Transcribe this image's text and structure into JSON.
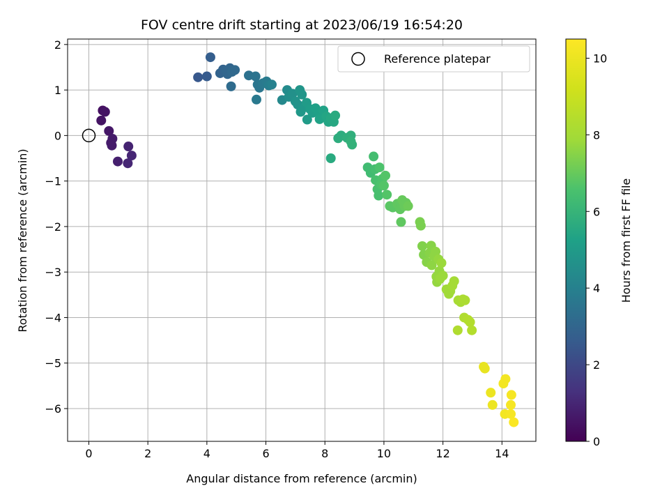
{
  "chart_data": {
    "type": "scatter",
    "title": "FOV centre drift starting at 2023/06/19 16:54:20",
    "xlabel": "Angular distance from reference (arcmin)",
    "ylabel": "Rotation from reference (arcmin)",
    "xlim": [
      -0.72,
      15.15
    ],
    "ylim": [
      -6.72,
      2.12
    ],
    "xticks": [
      0,
      2,
      4,
      6,
      8,
      10,
      12,
      14
    ],
    "yticks": [
      2,
      1,
      0,
      -1,
      -2,
      -3,
      -4,
      -5,
      -6
    ],
    "grid": true,
    "legend": {
      "location": "upper right",
      "entries": [
        "Reference platepar"
      ]
    },
    "reference_point": {
      "x": 0,
      "y": 0,
      "label": "Reference platepar"
    },
    "colorbar": {
      "label": "Hours from first FF file",
      "range": [
        0,
        10.5
      ],
      "ticks": [
        0,
        2,
        4,
        6,
        8,
        10
      ],
      "colormap": "viridis"
    },
    "points": [
      {
        "x": 0.47,
        "y": 0.55,
        "c": 0.4
      },
      {
        "x": 0.55,
        "y": 0.52,
        "c": 0.5
      },
      {
        "x": 0.42,
        "y": 0.33,
        "c": 0.5
      },
      {
        "x": 0.68,
        "y": 0.1,
        "c": 0.6
      },
      {
        "x": 0.8,
        "y": -0.07,
        "c": 0.7
      },
      {
        "x": 0.75,
        "y": -0.16,
        "c": 0.7
      },
      {
        "x": 0.78,
        "y": -0.22,
        "c": 0.7
      },
      {
        "x": 0.98,
        "y": -0.57,
        "c": 0.8
      },
      {
        "x": 1.34,
        "y": -0.24,
        "c": 0.9
      },
      {
        "x": 1.45,
        "y": -0.44,
        "c": 1.0
      },
      {
        "x": 1.32,
        "y": -0.61,
        "c": 1.0
      },
      {
        "x": 3.7,
        "y": 1.28,
        "c": 2.5
      },
      {
        "x": 4.0,
        "y": 1.3,
        "c": 2.6
      },
      {
        "x": 4.12,
        "y": 1.72,
        "c": 2.7
      },
      {
        "x": 4.45,
        "y": 1.37,
        "c": 2.9
      },
      {
        "x": 4.55,
        "y": 1.45,
        "c": 2.9
      },
      {
        "x": 4.65,
        "y": 1.42,
        "c": 3.0
      },
      {
        "x": 4.7,
        "y": 1.35,
        "c": 3.0
      },
      {
        "x": 4.78,
        "y": 1.48,
        "c": 3.0
      },
      {
        "x": 4.85,
        "y": 1.4,
        "c": 3.1
      },
      {
        "x": 4.95,
        "y": 1.44,
        "c": 3.1
      },
      {
        "x": 4.82,
        "y": 1.08,
        "c": 3.2
      },
      {
        "x": 5.42,
        "y": 1.32,
        "c": 3.4
      },
      {
        "x": 5.65,
        "y": 1.3,
        "c": 3.5
      },
      {
        "x": 5.72,
        "y": 1.12,
        "c": 3.6
      },
      {
        "x": 5.78,
        "y": 1.05,
        "c": 3.6
      },
      {
        "x": 5.68,
        "y": 0.79,
        "c": 3.7
      },
      {
        "x": 5.9,
        "y": 1.15,
        "c": 3.7
      },
      {
        "x": 6.02,
        "y": 1.19,
        "c": 3.8
      },
      {
        "x": 6.1,
        "y": 1.1,
        "c": 3.9
      },
      {
        "x": 6.2,
        "y": 1.12,
        "c": 4.0
      },
      {
        "x": 6.55,
        "y": 0.78,
        "c": 4.3
      },
      {
        "x": 6.72,
        "y": 1.0,
        "c": 4.4
      },
      {
        "x": 6.78,
        "y": 0.85,
        "c": 4.5
      },
      {
        "x": 6.9,
        "y": 0.92,
        "c": 4.6
      },
      {
        "x": 7.0,
        "y": 0.75,
        "c": 4.7
      },
      {
        "x": 7.08,
        "y": 0.68,
        "c": 4.7
      },
      {
        "x": 7.15,
        "y": 1.0,
        "c": 4.8
      },
      {
        "x": 7.22,
        "y": 0.9,
        "c": 4.8
      },
      {
        "x": 7.18,
        "y": 0.52,
        "c": 4.9
      },
      {
        "x": 7.3,
        "y": 0.62,
        "c": 4.9
      },
      {
        "x": 7.38,
        "y": 0.72,
        "c": 5.0
      },
      {
        "x": 7.4,
        "y": 0.35,
        "c": 5.0
      },
      {
        "x": 7.5,
        "y": 0.58,
        "c": 5.1
      },
      {
        "x": 7.58,
        "y": 0.5,
        "c": 5.1
      },
      {
        "x": 7.68,
        "y": 0.6,
        "c": 5.2
      },
      {
        "x": 7.78,
        "y": 0.52,
        "c": 5.2
      },
      {
        "x": 7.82,
        "y": 0.36,
        "c": 5.3
      },
      {
        "x": 7.95,
        "y": 0.55,
        "c": 5.3
      },
      {
        "x": 8.05,
        "y": 0.42,
        "c": 5.4
      },
      {
        "x": 8.12,
        "y": 0.3,
        "c": 5.4
      },
      {
        "x": 8.2,
        "y": 0.38,
        "c": 5.5
      },
      {
        "x": 8.3,
        "y": 0.3,
        "c": 5.5
      },
      {
        "x": 8.35,
        "y": 0.44,
        "c": 5.6
      },
      {
        "x": 8.2,
        "y": -0.5,
        "c": 5.6
      },
      {
        "x": 8.45,
        "y": -0.06,
        "c": 5.7
      },
      {
        "x": 8.55,
        "y": 0.0,
        "c": 5.7
      },
      {
        "x": 8.75,
        "y": -0.05,
        "c": 5.8
      },
      {
        "x": 8.88,
        "y": -0.0,
        "c": 5.8
      },
      {
        "x": 8.92,
        "y": -0.2,
        "c": 5.9
      },
      {
        "x": 8.88,
        "y": -0.13,
        "c": 5.9
      },
      {
        "x": 9.45,
        "y": -0.7,
        "c": 6.3
      },
      {
        "x": 9.55,
        "y": -0.82,
        "c": 6.3
      },
      {
        "x": 9.65,
        "y": -0.46,
        "c": 6.4
      },
      {
        "x": 9.7,
        "y": -0.74,
        "c": 6.4
      },
      {
        "x": 9.72,
        "y": -0.98,
        "c": 6.5
      },
      {
        "x": 9.78,
        "y": -1.18,
        "c": 6.5
      },
      {
        "x": 9.82,
        "y": -1.32,
        "c": 6.5
      },
      {
        "x": 9.85,
        "y": -0.7,
        "c": 6.6
      },
      {
        "x": 9.9,
        "y": -1.08,
        "c": 6.6
      },
      {
        "x": 9.95,
        "y": -0.95,
        "c": 6.6
      },
      {
        "x": 10.0,
        "y": -1.1,
        "c": 6.7
      },
      {
        "x": 10.05,
        "y": -0.88,
        "c": 6.7
      },
      {
        "x": 10.1,
        "y": -1.3,
        "c": 6.7
      },
      {
        "x": 10.2,
        "y": -1.55,
        "c": 6.8
      },
      {
        "x": 10.3,
        "y": -1.58,
        "c": 6.8
      },
      {
        "x": 10.45,
        "y": -1.5,
        "c": 6.9
      },
      {
        "x": 10.55,
        "y": -1.62,
        "c": 6.9
      },
      {
        "x": 10.58,
        "y": -1.9,
        "c": 6.9
      },
      {
        "x": 10.62,
        "y": -1.42,
        "c": 7.0
      },
      {
        "x": 10.7,
        "y": -1.55,
        "c": 7.0
      },
      {
        "x": 10.75,
        "y": -1.48,
        "c": 7.0
      },
      {
        "x": 10.82,
        "y": -1.55,
        "c": 7.1
      },
      {
        "x": 11.22,
        "y": -1.9,
        "c": 7.3
      },
      {
        "x": 11.25,
        "y": -1.98,
        "c": 7.3
      },
      {
        "x": 11.3,
        "y": -2.43,
        "c": 7.4
      },
      {
        "x": 11.35,
        "y": -2.62,
        "c": 7.4
      },
      {
        "x": 11.45,
        "y": -2.78,
        "c": 7.5
      },
      {
        "x": 11.55,
        "y": -2.58,
        "c": 7.5
      },
      {
        "x": 11.6,
        "y": -2.42,
        "c": 7.5
      },
      {
        "x": 11.62,
        "y": -2.85,
        "c": 7.6
      },
      {
        "x": 11.7,
        "y": -2.65,
        "c": 7.6
      },
      {
        "x": 11.75,
        "y": -2.55,
        "c": 7.6
      },
      {
        "x": 11.78,
        "y": -3.1,
        "c": 7.7
      },
      {
        "x": 11.8,
        "y": -3.22,
        "c": 7.7
      },
      {
        "x": 11.85,
        "y": -2.72,
        "c": 7.7
      },
      {
        "x": 11.88,
        "y": -2.98,
        "c": 7.7
      },
      {
        "x": 11.9,
        "y": -3.15,
        "c": 7.8
      },
      {
        "x": 11.95,
        "y": -2.8,
        "c": 7.8
      },
      {
        "x": 12.0,
        "y": -3.08,
        "c": 7.8
      },
      {
        "x": 12.12,
        "y": -3.38,
        "c": 7.9
      },
      {
        "x": 12.2,
        "y": -3.48,
        "c": 7.9
      },
      {
        "x": 12.25,
        "y": -3.42,
        "c": 7.9
      },
      {
        "x": 12.32,
        "y": -3.3,
        "c": 8.0
      },
      {
        "x": 12.38,
        "y": -3.2,
        "c": 8.0
      },
      {
        "x": 12.52,
        "y": -3.62,
        "c": 8.1
      },
      {
        "x": 12.6,
        "y": -3.66,
        "c": 8.1
      },
      {
        "x": 12.68,
        "y": -3.6,
        "c": 8.2
      },
      {
        "x": 12.75,
        "y": -3.62,
        "c": 8.2
      },
      {
        "x": 12.5,
        "y": -4.28,
        "c": 8.3
      },
      {
        "x": 12.72,
        "y": -4.0,
        "c": 8.3
      },
      {
        "x": 12.85,
        "y": -4.05,
        "c": 8.4
      },
      {
        "x": 12.92,
        "y": -4.1,
        "c": 8.4
      },
      {
        "x": 12.98,
        "y": -4.28,
        "c": 8.4
      },
      {
        "x": 13.38,
        "y": -5.08,
        "c": 9.9
      },
      {
        "x": 13.42,
        "y": -5.12,
        "c": 9.9
      },
      {
        "x": 13.62,
        "y": -5.65,
        "c": 10.0
      },
      {
        "x": 13.68,
        "y": -5.92,
        "c": 10.0
      },
      {
        "x": 14.05,
        "y": -5.45,
        "c": 10.2
      },
      {
        "x": 14.12,
        "y": -5.35,
        "c": 10.2
      },
      {
        "x": 14.1,
        "y": -6.12,
        "c": 10.2
      },
      {
        "x": 14.32,
        "y": -5.7,
        "c": 10.3
      },
      {
        "x": 14.3,
        "y": -5.92,
        "c": 10.3
      },
      {
        "x": 14.3,
        "y": -6.12,
        "c": 10.3
      },
      {
        "x": 14.4,
        "y": -6.3,
        "c": 10.4
      }
    ]
  }
}
